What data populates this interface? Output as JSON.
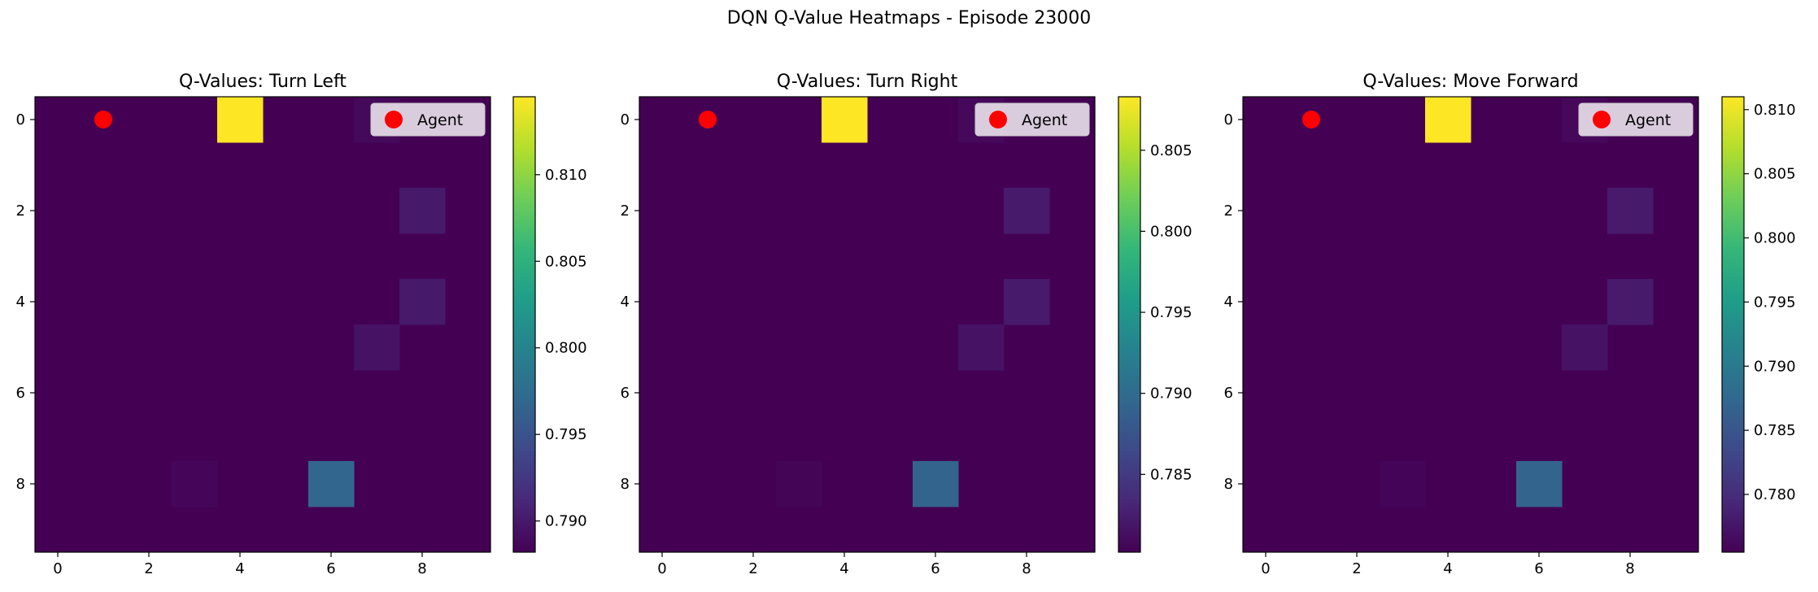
{
  "figure": {
    "suptitle": "DQN Q-Value Heatmaps - Episode 23000"
  },
  "colormap": {
    "name": "viridis",
    "marker_color": "#ff0000"
  },
  "chart_data": [
    {
      "type": "heatmap",
      "title": "Q-Values: Turn Left",
      "grid_size": 10,
      "xticks": [
        0,
        2,
        4,
        6,
        8
      ],
      "yticks": [
        0,
        2,
        4,
        6,
        8
      ],
      "vmin": 0.7882,
      "vmax": 0.8145,
      "colorbar_ticks": [
        0.79,
        0.795,
        0.8,
        0.805,
        0.81
      ],
      "default_value": 0.7882,
      "cells": [
        {
          "x": 4,
          "y": 0,
          "value": 0.8145
        },
        {
          "x": 7,
          "y": 0,
          "value": 0.7888
        },
        {
          "x": 8,
          "y": 2,
          "value": 0.79
        },
        {
          "x": 8,
          "y": 4,
          "value": 0.79
        },
        {
          "x": 7,
          "y": 5,
          "value": 0.7895
        },
        {
          "x": 3,
          "y": 8,
          "value": 0.7886
        },
        {
          "x": 6,
          "y": 8,
          "value": 0.7968
        }
      ],
      "agent": {
        "x": 1,
        "y": 0
      },
      "legend": {
        "label": "Agent",
        "position": "top-right"
      }
    },
    {
      "type": "heatmap",
      "title": "Q-Values: Turn Right",
      "grid_size": 10,
      "xticks": [
        0,
        2,
        4,
        6,
        8
      ],
      "yticks": [
        0,
        2,
        4,
        6,
        8
      ],
      "vmin": 0.7802,
      "vmax": 0.8083,
      "colorbar_ticks": [
        0.785,
        0.79,
        0.795,
        0.8,
        0.805
      ],
      "default_value": 0.7802,
      "cells": [
        {
          "x": 4,
          "y": 0,
          "value": 0.8083
        },
        {
          "x": 7,
          "y": 0,
          "value": 0.7808
        },
        {
          "x": 8,
          "y": 2,
          "value": 0.7822
        },
        {
          "x": 8,
          "y": 4,
          "value": 0.7822
        },
        {
          "x": 7,
          "y": 5,
          "value": 0.7816
        },
        {
          "x": 3,
          "y": 8,
          "value": 0.7805
        },
        {
          "x": 6,
          "y": 8,
          "value": 0.7892
        }
      ],
      "agent": {
        "x": 1,
        "y": 0
      },
      "legend": {
        "label": "Agent",
        "position": "top-right"
      }
    },
    {
      "type": "heatmap",
      "title": "Q-Values: Move Forward",
      "grid_size": 10,
      "xticks": [
        0,
        2,
        4,
        6,
        8
      ],
      "yticks": [
        0,
        2,
        4,
        6,
        8
      ],
      "vmin": 0.7755,
      "vmax": 0.811,
      "colorbar_ticks": [
        0.78,
        0.785,
        0.79,
        0.795,
        0.8,
        0.805,
        0.81
      ],
      "default_value": 0.7755,
      "cells": [
        {
          "x": 4,
          "y": 0,
          "value": 0.811
        },
        {
          "x": 7,
          "y": 0,
          "value": 0.7762
        },
        {
          "x": 8,
          "y": 2,
          "value": 0.778
        },
        {
          "x": 8,
          "y": 4,
          "value": 0.778
        },
        {
          "x": 7,
          "y": 5,
          "value": 0.7772
        },
        {
          "x": 3,
          "y": 8,
          "value": 0.7758
        },
        {
          "x": 6,
          "y": 8,
          "value": 0.7868
        }
      ],
      "agent": {
        "x": 1,
        "y": 0
      },
      "legend": {
        "label": "Agent",
        "position": "top-right"
      }
    }
  ]
}
